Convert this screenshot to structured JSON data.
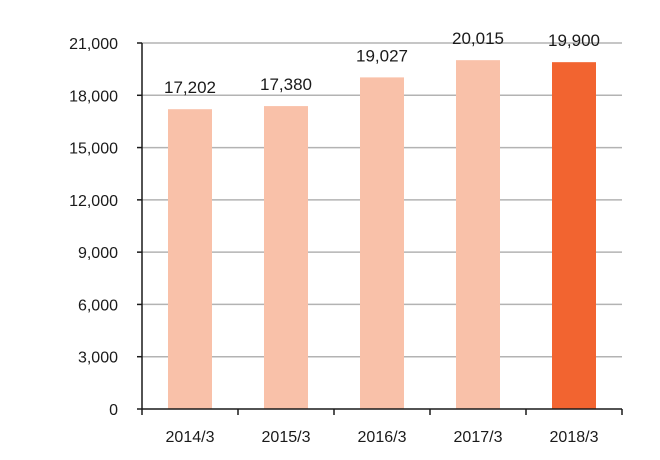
{
  "chart_data": {
    "type": "bar",
    "categories": [
      "2014/3",
      "2015/3",
      "2016/3",
      "2017/3",
      "2018/3"
    ],
    "values": [
      17202,
      17380,
      19027,
      20015,
      19900
    ],
    "value_labels": [
      "17,202",
      "17,380",
      "19,027",
      "20,015",
      "19,900"
    ],
    "title": "",
    "xlabel": "",
    "ylabel": "",
    "ylim": [
      0,
      21000
    ],
    "yticks": [
      0,
      3000,
      6000,
      9000,
      12000,
      15000,
      18000,
      21000
    ],
    "ytick_labels": [
      "0",
      "3,000",
      "6,000",
      "9,000",
      "12,000",
      "15,000",
      "18,000",
      "21,000"
    ],
    "grid": true,
    "legend": "none",
    "colors": {
      "bar": "#f9c1a9",
      "highlight_bar": "#f26430",
      "grid": "#b3b3b3",
      "axis": "#1a1a1a",
      "text": "#1a1a1a"
    },
    "highlight_index": 4
  }
}
